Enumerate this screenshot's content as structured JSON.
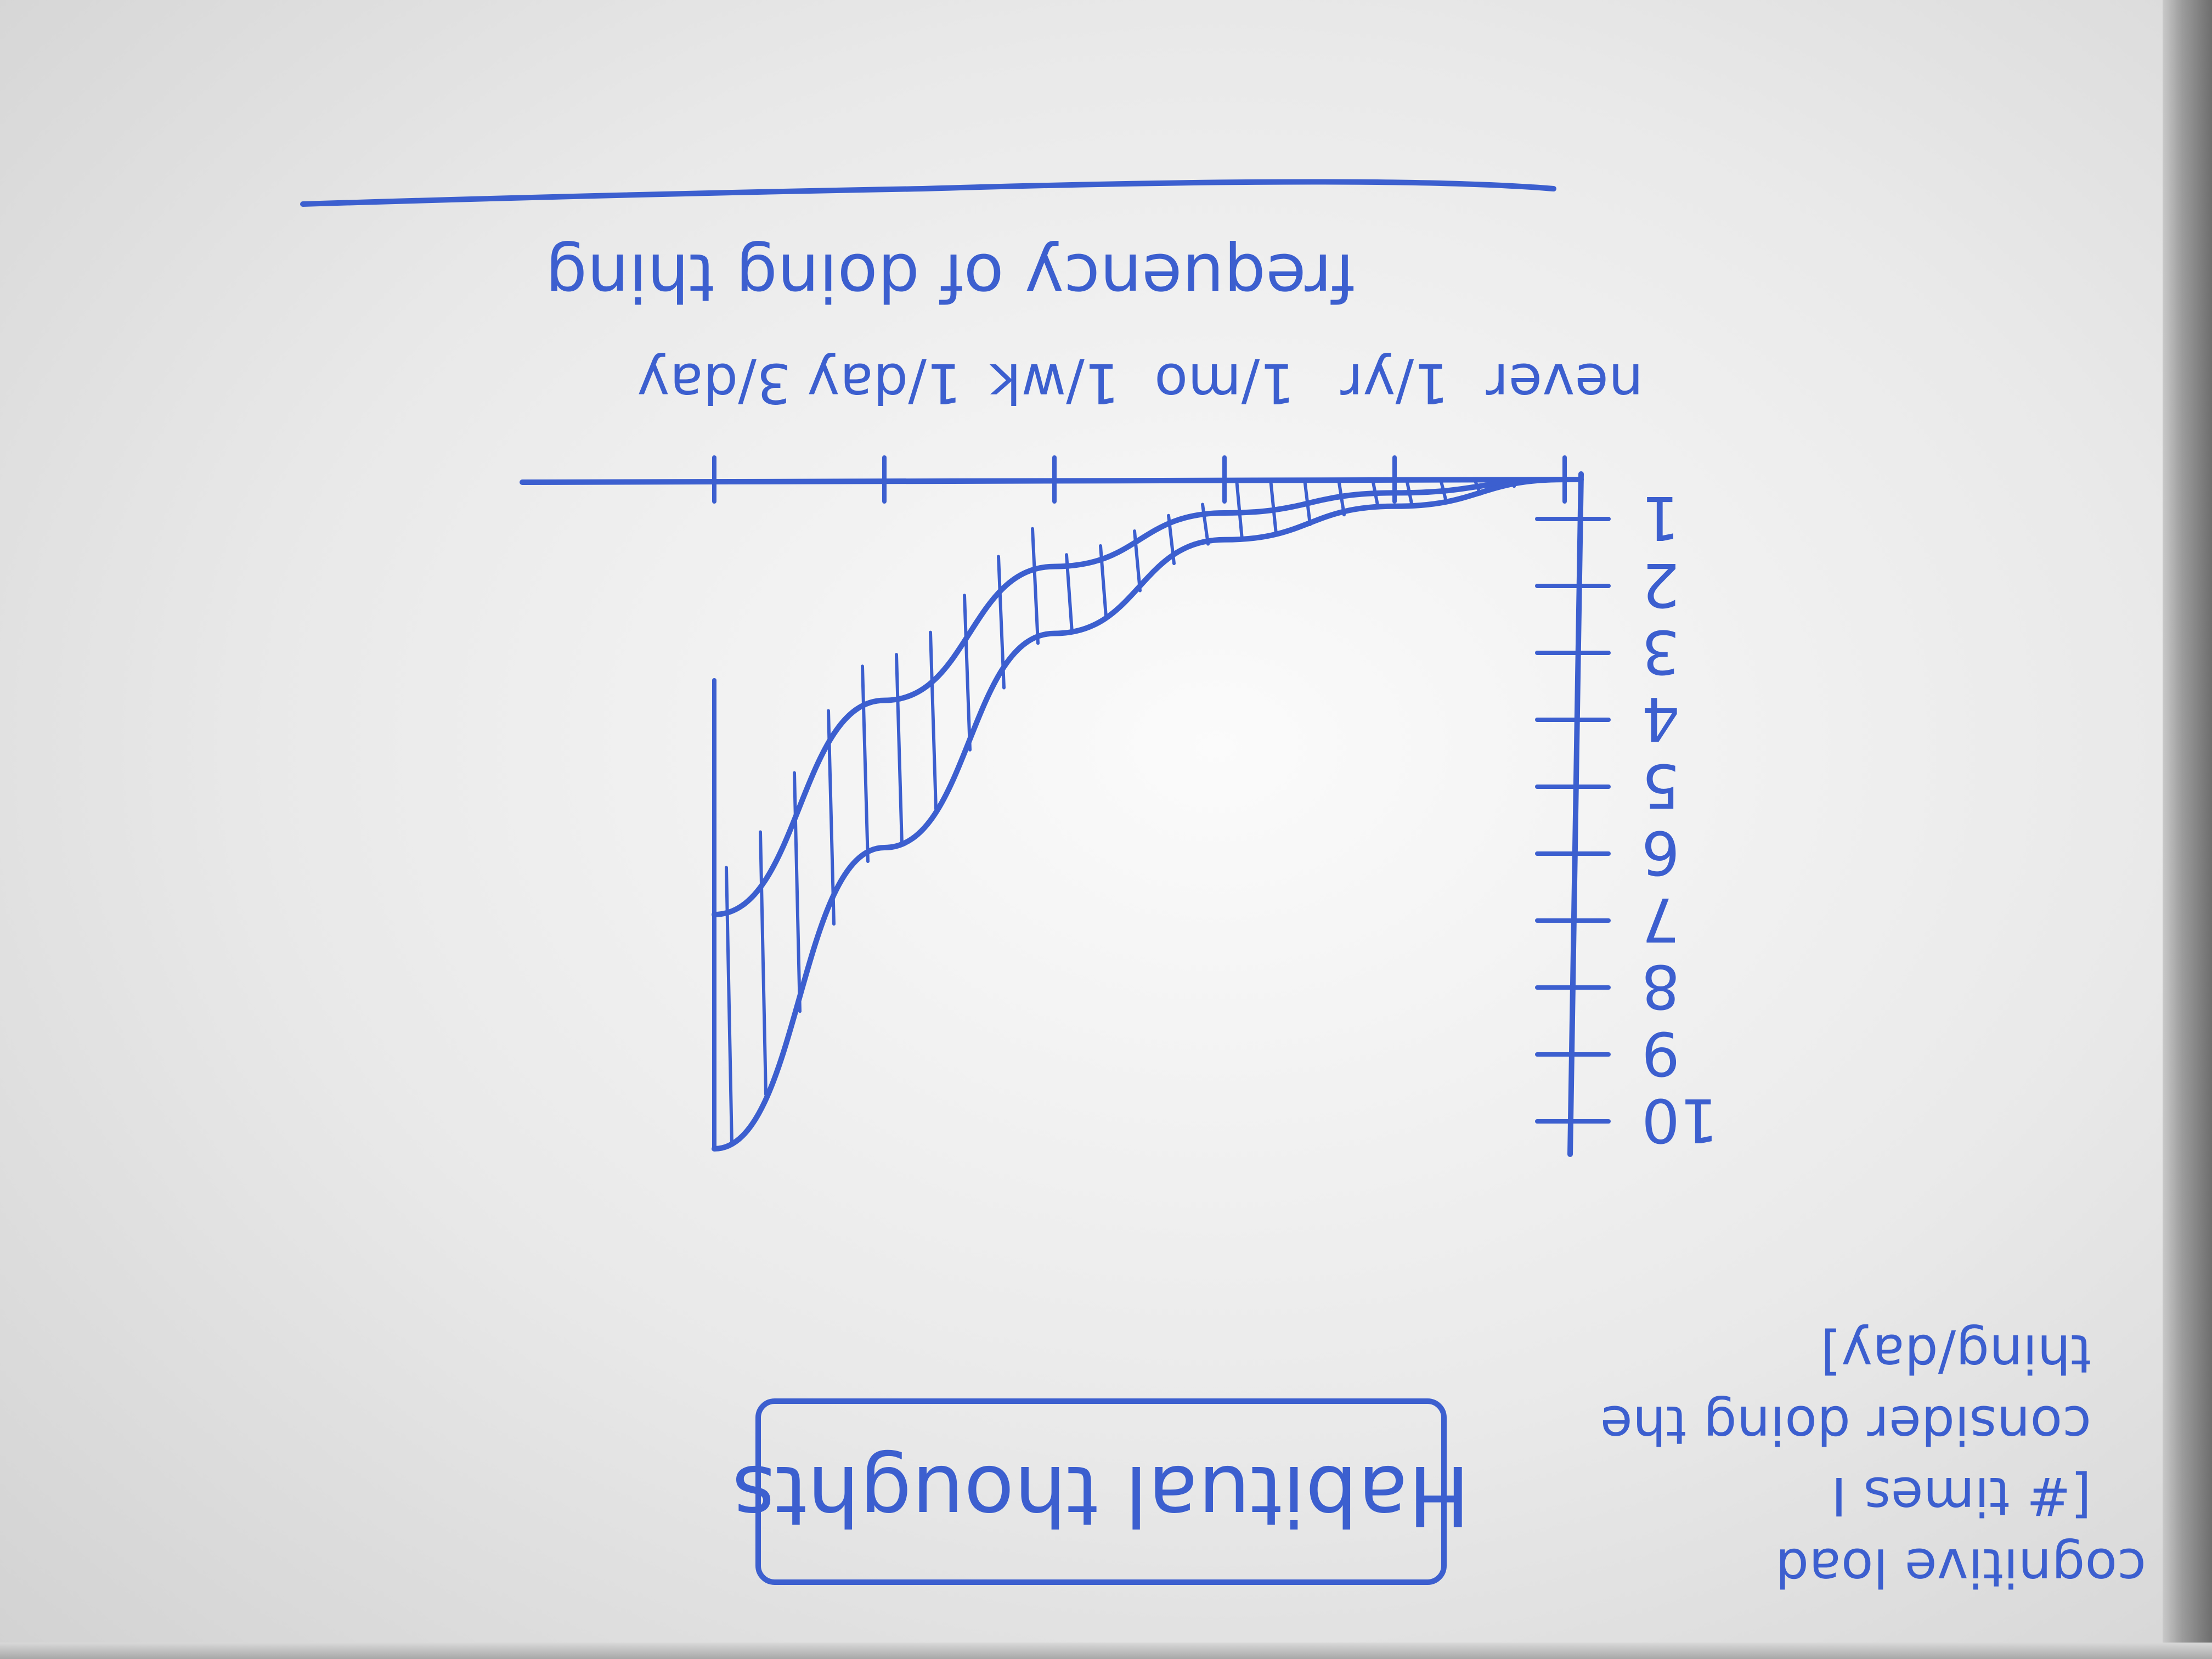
{
  "chart_data": {
    "type": "area",
    "orientation": "rotated 180 degrees (drawing is upside down)",
    "xlabel": "frequency of doing thing",
    "ylabel": "cognitive load [# times I consider doing the thing/day]",
    "title": "Habitual thoughts",
    "x_ticks": [
      "never",
      "1/yr",
      "1/mo",
      "1/wk",
      "1/day",
      "3/day"
    ],
    "y_ticks": [
      "1",
      "2",
      "3",
      "4",
      "5",
      "6",
      "7",
      "8",
      "9",
      "10"
    ],
    "ylim": [
      0,
      10
    ],
    "series": [
      {
        "x": [
          "never",
          "1/yr",
          "1/mo",
          "1/wk",
          "1/day",
          "3/day"
        ],
        "values": [
          0,
          0.2,
          0.5,
          1.3,
          3.3,
          6.5
        ]
      },
      {
        "x": [
          "never",
          "1/yr",
          "1/mo",
          "1/wk",
          "1/day",
          "3/day"
        ],
        "values": [
          0,
          0.4,
          0.9,
          2.3,
          5.5,
          10
        ]
      }
    ],
    "fill": "hatched region between curves"
  }
}
